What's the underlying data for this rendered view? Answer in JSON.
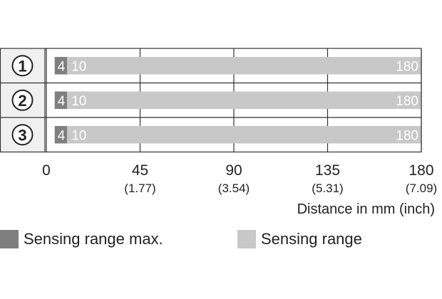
{
  "chart_data": {
    "type": "bar",
    "orientation": "horizontal",
    "categories": [
      "①",
      "②",
      "③"
    ],
    "series": [
      {
        "name": "Sensing range max.",
        "start": [
          4,
          4,
          4
        ],
        "end": [
          10,
          10,
          10
        ],
        "color": "#7f7f7f",
        "start_labels": [
          "4",
          "4",
          "4"
        ]
      },
      {
        "name": "Sensing range",
        "start": [
          10,
          10,
          10
        ],
        "end": [
          180,
          180,
          180
        ],
        "color": "#c8c8c8",
        "start_labels": [
          "10",
          "10",
          "10"
        ],
        "end_labels": [
          "180",
          "180",
          "180"
        ]
      }
    ],
    "xlim": [
      0,
      180
    ],
    "xticks": [
      {
        "value": 0,
        "label": "0",
        "sublabel": ""
      },
      {
        "value": 45,
        "label": "45",
        "sublabel": "(1.77)"
      },
      {
        "value": 90,
        "label": "90",
        "sublabel": "(3.54)"
      },
      {
        "value": 135,
        "label": "135",
        "sublabel": "(5.31)"
      },
      {
        "value": 180,
        "label": "180",
        "sublabel": "(7.09)"
      }
    ],
    "xlabel": "Distance in mm (inch)",
    "grid": true,
    "legend_position": "bottom"
  }
}
